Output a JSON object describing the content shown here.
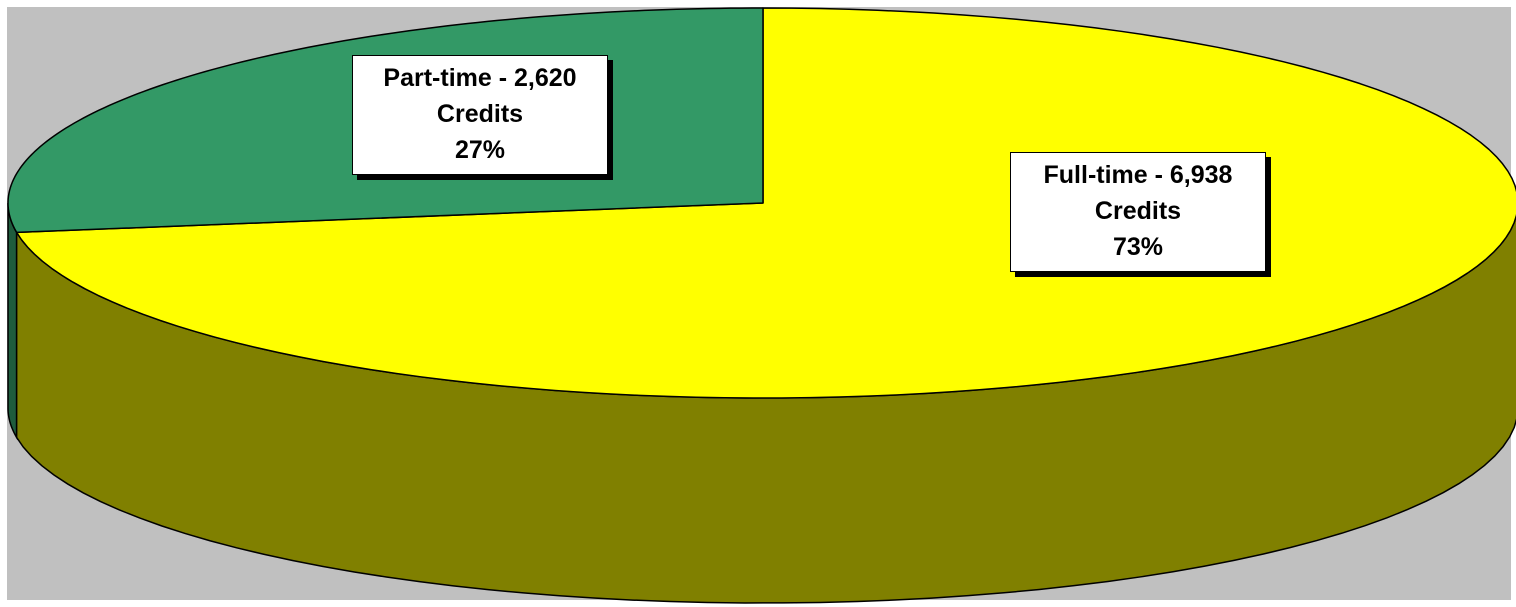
{
  "chart_data": {
    "type": "pie",
    "three_d": true,
    "title": "",
    "legend": "none",
    "slices": [
      {
        "category": "Full-time",
        "value": 6938,
        "percent": 73,
        "color": "#FFFF00",
        "side_color": "#808000",
        "label_lines": [
          "Full-time - 6,938",
          "Credits",
          "73%"
        ]
      },
      {
        "category": "Part-time",
        "value": 2620,
        "percent": 27,
        "color": "#339966",
        "side_color": "#1F5C3D",
        "label_lines": [
          "Part-time - 2,620",
          "Credits",
          "27%"
        ]
      }
    ],
    "plot_background": "#C0C0C0",
    "page_background": "#FFFFFF"
  }
}
